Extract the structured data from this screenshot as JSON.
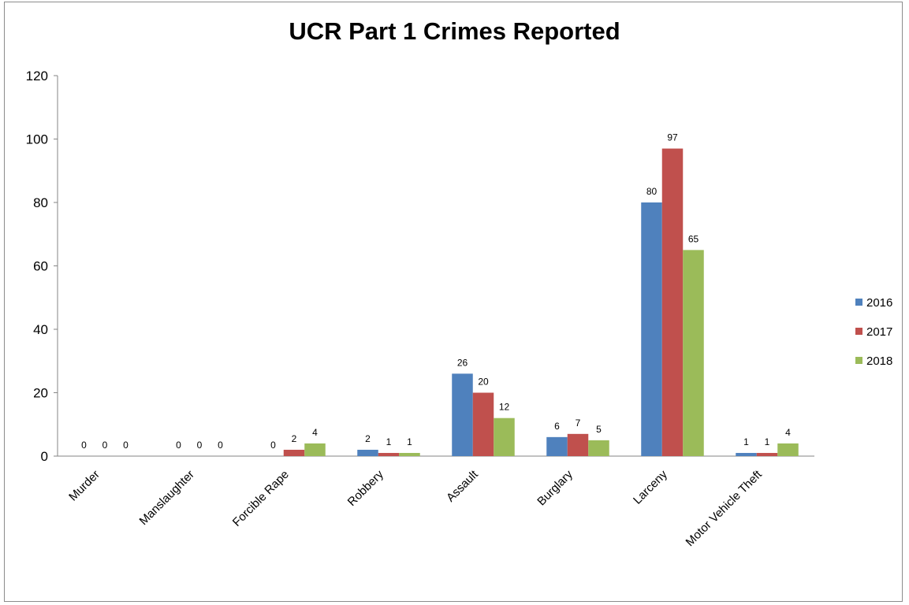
{
  "chart_data": {
    "type": "bar",
    "title": "UCR Part 1 Crimes Reported",
    "categories": [
      "Murder",
      "Manslaughter",
      "Forcible Rape",
      "Robbery",
      "Assault",
      "Burglary",
      "Larceny",
      "Motor Vehicle Theft"
    ],
    "series": [
      {
        "name": "2016",
        "color": "#4f81bd",
        "values": [
          0,
          0,
          0,
          2,
          26,
          6,
          80,
          1
        ]
      },
      {
        "name": "2017",
        "color": "#c0504d",
        "values": [
          0,
          0,
          2,
          1,
          20,
          7,
          97,
          1
        ]
      },
      {
        "name": "2018",
        "color": "#9bbb59",
        "values": [
          0,
          0,
          4,
          1,
          12,
          5,
          65,
          4
        ]
      }
    ],
    "ylim": [
      0,
      120
    ],
    "yticks": [
      0,
      20,
      40,
      60,
      80,
      100,
      120
    ],
    "grid": false,
    "legend_position": "right",
    "data_labels": true
  }
}
